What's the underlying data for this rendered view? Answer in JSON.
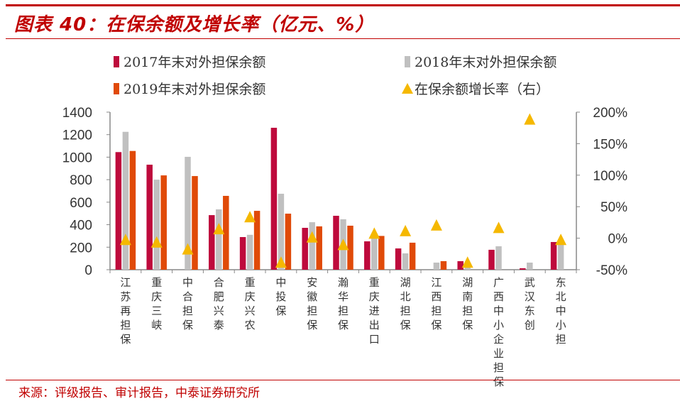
{
  "title": "图表 40：在保余额及增长率（亿元、%）",
  "source": "来源：评级报告、审计报告，中泰证券研究所",
  "colors": {
    "s2017": "#be0a3c",
    "s2018": "#c0c0c0",
    "s2019": "#e04a08",
    "growth": "#f5b800",
    "rule": "#c00000"
  },
  "chart_data": {
    "type": "bar",
    "categories": [
      "江苏再担保",
      "重庆三峡",
      "中合担保",
      "合肥兴泰",
      "重庆兴农",
      "中投保",
      "安徽担保",
      "瀚华担保",
      "重庆进出口",
      "湖北担保",
      "江西担保",
      "湖南担保",
      "广西中小企业担保",
      "武汉东创",
      "东北中小担"
    ],
    "series": [
      {
        "name": "2017年末对外担保余额",
        "type": "bar",
        "axis": "left",
        "values": [
          1045,
          933,
          null,
          485,
          290,
          1261,
          372,
          479,
          252,
          189,
          null,
          76,
          177,
          13,
          246
        ]
      },
      {
        "name": "2018年末对外担保余额",
        "type": "bar",
        "axis": "left",
        "values": [
          1225,
          800,
          1003,
          536,
          310,
          675,
          422,
          448,
          296,
          145,
          63,
          20,
          208,
          63,
          240
        ]
      },
      {
        "name": "2019年末对外担保余额",
        "type": "bar",
        "axis": "left",
        "values": [
          1055,
          838,
          832,
          656,
          523,
          498,
          385,
          391,
          300,
          240,
          76,
          null,
          null,
          null,
          null
        ]
      },
      {
        "name": "在保余额增长率（右）",
        "type": "scatter",
        "axis": "right",
        "values": [
          -3,
          -7,
          -18,
          14,
          33,
          -39,
          1,
          -11,
          7,
          11,
          20,
          -39,
          16,
          188,
          -3
        ]
      }
    ],
    "ylim": [
      0,
      1400
    ],
    "yticks": [
      "0",
      "200",
      "400",
      "600",
      "800",
      "1000",
      "1200",
      "1400"
    ],
    "y2lim": [
      -50,
      200
    ],
    "y2ticks": [
      "-50%",
      "0%",
      "50%",
      "100%",
      "150%",
      "200%"
    ],
    "legend_position": "top",
    "grid": false
  }
}
